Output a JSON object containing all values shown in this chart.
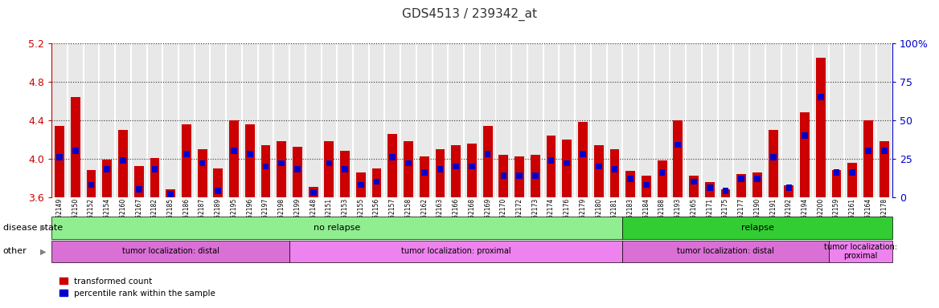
{
  "title": "GDS4513 / 239342_at",
  "samples": [
    "GSM452149",
    "GSM452150",
    "GSM452152",
    "GSM452154",
    "GSM452160",
    "GSM452167",
    "GSM452182",
    "GSM452185",
    "GSM452186",
    "GSM452187",
    "GSM452189",
    "GSM452195",
    "GSM452196",
    "GSM452197",
    "GSM452198",
    "GSM452199",
    "GSM452148",
    "GSM452151",
    "GSM452153",
    "GSM452155",
    "GSM452156",
    "GSM452157",
    "GSM452158",
    "GSM452162",
    "GSM452163",
    "GSM452166",
    "GSM452168",
    "GSM452169",
    "GSM452170",
    "GSM452172",
    "GSM452173",
    "GSM452174",
    "GSM452176",
    "GSM452179",
    "GSM452180",
    "GSM452181",
    "GSM452183",
    "GSM452184",
    "GSM452188",
    "GSM452193",
    "GSM452165",
    "GSM452171",
    "GSM452175",
    "GSM452177",
    "GSM452190",
    "GSM452191",
    "GSM452192",
    "GSM452194",
    "GSM452200",
    "GSM452159",
    "GSM452161",
    "GSM452164",
    "GSM452178"
  ],
  "red_values": [
    4.34,
    4.64,
    3.88,
    3.99,
    4.3,
    3.92,
    4.01,
    3.68,
    4.36,
    4.1,
    3.9,
    4.4,
    4.36,
    4.14,
    4.18,
    4.12,
    3.71,
    4.18,
    4.08,
    3.86,
    3.9,
    4.26,
    4.18,
    4.02,
    4.1,
    4.14,
    4.16,
    4.34,
    4.04,
    4.02,
    4.04,
    4.24,
    4.2,
    4.38,
    4.14,
    4.1,
    3.87,
    3.82,
    3.98,
    4.4,
    3.82,
    3.76,
    3.68,
    3.84,
    3.86,
    4.3,
    3.72,
    4.48,
    5.05,
    3.88,
    3.96,
    4.4,
    4.18
  ],
  "blue_values": [
    0.26,
    0.3,
    0.08,
    0.18,
    0.24,
    0.05,
    0.18,
    0.02,
    0.28,
    0.22,
    0.04,
    0.3,
    0.28,
    0.2,
    0.22,
    0.18,
    0.03,
    0.22,
    0.18,
    0.08,
    0.1,
    0.26,
    0.22,
    0.16,
    0.18,
    0.2,
    0.2,
    0.28,
    0.14,
    0.14,
    0.14,
    0.24,
    0.22,
    0.28,
    0.2,
    0.18,
    0.12,
    0.08,
    0.16,
    0.34,
    0.1,
    0.06,
    0.04,
    0.12,
    0.12,
    0.26,
    0.06,
    0.4,
    0.65,
    0.16,
    0.16,
    0.3,
    0.3
  ],
  "ylim_left": [
    3.6,
    5.2
  ],
  "ylim_right": [
    0,
    100
  ],
  "yticks_left": [
    3.6,
    4.0,
    4.4,
    4.8,
    5.2
  ],
  "yticks_right": [
    0,
    25,
    50,
    75,
    100
  ],
  "disease_state_groups": [
    {
      "label": "no relapse",
      "start": 0,
      "end": 36,
      "color": "#90EE90"
    },
    {
      "label": "relapse",
      "start": 36,
      "end": 53,
      "color": "#32CD32"
    }
  ],
  "other_groups": [
    {
      "label": "tumor localization: distal",
      "start": 0,
      "end": 15,
      "color": "#DA70D6"
    },
    {
      "label": "tumor localization: proximal",
      "start": 15,
      "end": 36,
      "color": "#EE82EE"
    },
    {
      "label": "tumor localization: distal",
      "start": 36,
      "end": 49,
      "color": "#DA70D6"
    },
    {
      "label": "tumor localization:\nproximal",
      "start": 49,
      "end": 53,
      "color": "#EE82EE"
    }
  ],
  "bar_color_red": "#CC0000",
  "bar_color_blue": "#0000CC",
  "background_color": "#ffffff",
  "bar_bg_color": "#E8E8E8",
  "dotted_line_color": "#333333",
  "title_color": "#333333",
  "left_axis_color": "#CC0000",
  "right_axis_color": "#0000CC",
  "ds_colors": {
    "no relapse": "#90EE90",
    "relapse": "#32CD32"
  }
}
